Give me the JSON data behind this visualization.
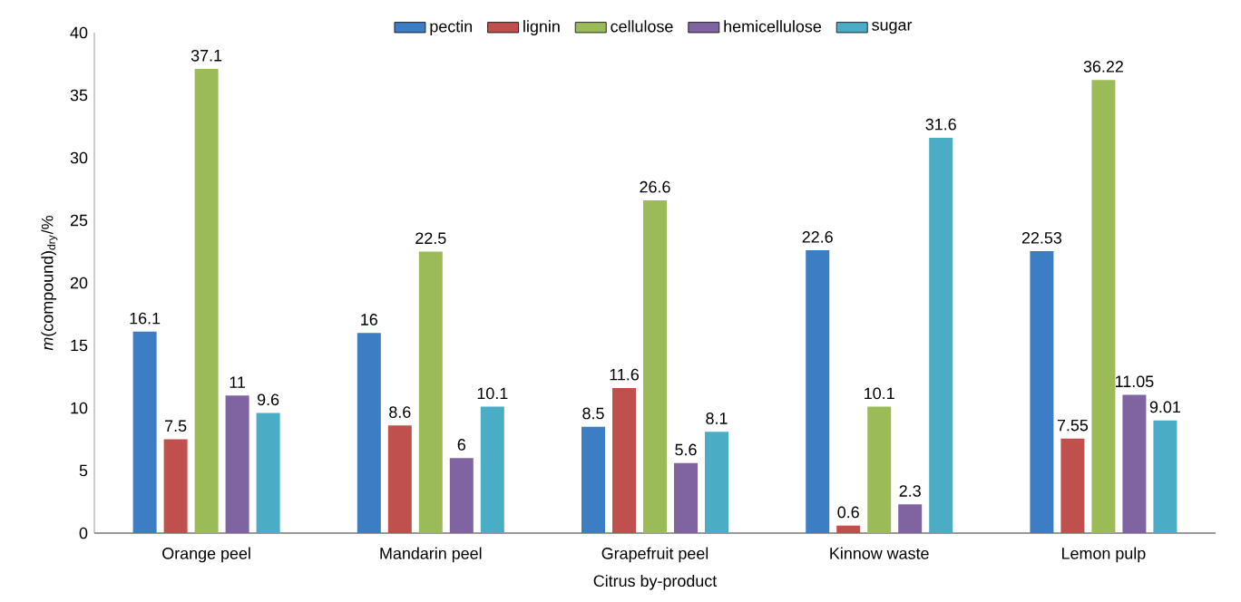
{
  "chart_data": {
    "type": "bar",
    "xlabel": "Citrus by-product",
    "ylabel": "*m*(compound)$_{dry}$/%",
    "categories": [
      "Orange peel",
      "Mandarin peel",
      "Grapefruit peel",
      "Kinnow waste",
      "Lemon pulp"
    ],
    "series": [
      {
        "name": "pectin",
        "color": "#3c7dc4",
        "values": [
          16.1,
          16,
          8.5,
          22.6,
          22.53
        ]
      },
      {
        "name": "lignin",
        "color": "#c0504d",
        "values": [
          7.5,
          8.6,
          11.6,
          0.6,
          7.55
        ]
      },
      {
        "name": "cellulose",
        "color": "#9bbb59",
        "values": [
          37.1,
          22.5,
          26.6,
          10.1,
          36.22
        ]
      },
      {
        "name": "hemicellulose",
        "color": "#8064a2",
        "values": [
          11,
          6,
          5.6,
          2.3,
          11.05
        ]
      },
      {
        "name": "sugar",
        "color": "#4bacc6",
        "values": [
          9.6,
          10.1,
          8.1,
          31.6,
          9.01
        ]
      }
    ],
    "ylim": [
      0,
      40
    ],
    "yticks": [
      0,
      5,
      10,
      15,
      20,
      25,
      30,
      35,
      40
    ],
    "data_labels": true,
    "legend": "top",
    "grid": false
  }
}
